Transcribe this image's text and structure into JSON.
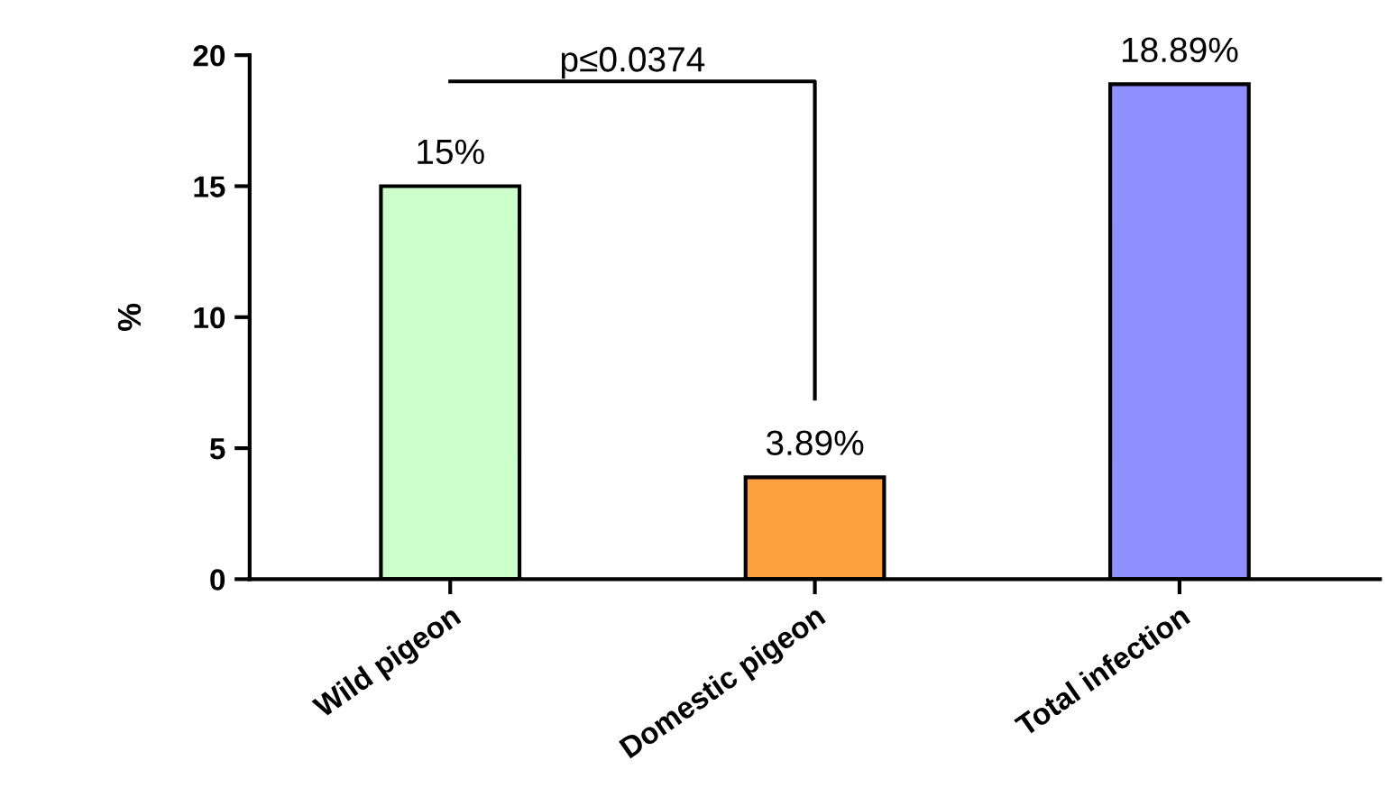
{
  "chart_data": {
    "type": "bar",
    "ylabel": "%",
    "categories": [
      "Wild pigeon",
      "Domestic pigeon",
      "Total infection"
    ],
    "values": [
      15,
      3.89,
      18.89
    ],
    "colors": [
      "#ccffcc",
      "#ffa040",
      "#8f8fff"
    ],
    "value_labels": [
      "15%",
      "3.89%",
      "18.89%"
    ],
    "ylim": [
      0,
      20
    ],
    "yticks": [
      0,
      5,
      10,
      15,
      20
    ],
    "grid": false,
    "annotations": [
      "p≤0.0374"
    ]
  }
}
